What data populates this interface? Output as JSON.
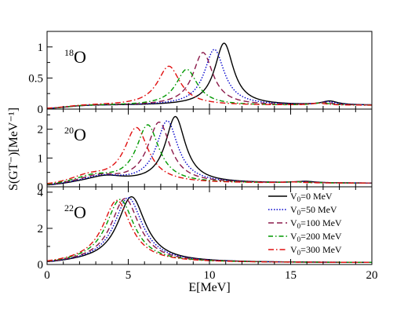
{
  "chart_data": {
    "type": "line",
    "xlabel": "E[MeV]",
    "ylabel": "S(GT⁻)[MeV⁻¹]",
    "xlim": [
      0,
      20
    ],
    "x_ticks": [
      "0",
      "5",
      "10",
      "15",
      "20"
    ],
    "grid": false,
    "legend_position": "bottom-right",
    "legend": [
      {
        "sub": "0",
        "text": "V",
        "val": "=0 MeV",
        "color": "#000000",
        "dash": ""
      },
      {
        "sub": "0",
        "text": "V",
        "val": "=50 MeV",
        "color": "#0000cc",
        "dash": "1.5,2"
      },
      {
        "sub": "0",
        "text": "V",
        "val": "=100 MeV",
        "color": "#8b1a4a",
        "dash": "7,4"
      },
      {
        "sub": "0",
        "text": "V",
        "val": "=200 MeV",
        "color": "#009900",
        "dash": "6,3,1.5,3"
      },
      {
        "sub": "0",
        "text": "V",
        "val": "=300 MeV",
        "color": "#e01010",
        "dash": "7,3,1.5,3"
      }
    ],
    "panels": [
      {
        "nucleus_mass": "18",
        "nucleus_symbol": "O",
        "ylim": [
          0,
          1.25
        ],
        "y_ticks": [
          0,
          0.5,
          1
        ],
        "y_tick_labels": [
          "0",
          "0.5",
          "1"
        ],
        "background": 0.06,
        "series": [
          {
            "name": "V0=0 MeV",
            "peaks": [
              [
                10.9,
                1.0,
                0.7
              ],
              [
                17.4,
                0.06,
                0.6
              ]
            ]
          },
          {
            "name": "V0=50 MeV",
            "peaks": [
              [
                10.3,
                0.9,
                0.75
              ],
              [
                17.3,
                0.05,
                0.6
              ]
            ]
          },
          {
            "name": "V0=100 MeV",
            "peaks": [
              [
                9.6,
                0.85,
                0.75
              ],
              [
                17.1,
                0.04,
                0.6
              ]
            ]
          },
          {
            "name": "V0=200 MeV",
            "peaks": [
              [
                8.6,
                0.58,
                0.8
              ],
              [
                16.9,
                0.035,
                0.6
              ]
            ]
          },
          {
            "name": "V0=300 MeV",
            "peaks": [
              [
                7.5,
                0.63,
                0.85
              ],
              [
                16.7,
                0.03,
                0.6
              ]
            ]
          }
        ]
      },
      {
        "nucleus_mass": "20",
        "nucleus_symbol": "O",
        "ylim": [
          0,
          2.7
        ],
        "y_ticks": [
          0,
          1,
          2
        ],
        "y_tick_labels": [
          "0",
          "1",
          "2"
        ],
        "background": 0.12,
        "series": [
          {
            "name": "V0=0 MeV",
            "peaks": [
              [
                7.9,
                2.3,
                0.75
              ],
              [
                3.6,
                0.22,
                1.4
              ],
              [
                15.9,
                0.05,
                0.7
              ]
            ]
          },
          {
            "name": "V0=50 MeV",
            "peaks": [
              [
                7.4,
                2.15,
                0.8
              ],
              [
                3.4,
                0.22,
                1.4
              ],
              [
                15.7,
                0.04,
                0.7
              ]
            ]
          },
          {
            "name": "V0=100 MeV",
            "peaks": [
              [
                6.9,
                2.1,
                0.85
              ],
              [
                3.2,
                0.22,
                1.4
              ],
              [
                15.5,
                0.04,
                0.7
              ]
            ]
          },
          {
            "name": "V0=200 MeV",
            "peaks": [
              [
                6.2,
                2.0,
                0.85
              ],
              [
                2.9,
                0.22,
                1.4
              ],
              [
                15.3,
                0.035,
                0.7
              ]
            ]
          },
          {
            "name": "V0=300 MeV",
            "peaks": [
              [
                5.5,
                1.9,
                0.9
              ],
              [
                2.6,
                0.22,
                1.4
              ],
              [
                15.1,
                0.03,
                0.7
              ]
            ]
          }
        ]
      },
      {
        "nucleus_mass": "22",
        "nucleus_symbol": "O",
        "ylim": [
          0,
          4.3
        ],
        "y_ticks": [
          0,
          2,
          4
        ],
        "y_tick_labels": [
          "0",
          "2",
          "4"
        ],
        "background": 0.1,
        "series": [
          {
            "name": "V0=0 MeV",
            "peaks": [
              [
                5.2,
                3.65,
                1.05
              ]
            ]
          },
          {
            "name": "V0=50 MeV",
            "peaks": [
              [
                5.0,
                3.6,
                1.05
              ]
            ]
          },
          {
            "name": "V0=100 MeV",
            "peaks": [
              [
                4.8,
                3.55,
                1.05
              ]
            ]
          },
          {
            "name": "V0=200 MeV",
            "peaks": [
              [
                4.5,
                3.5,
                1.05
              ]
            ]
          },
          {
            "name": "V0=300 MeV",
            "peaks": [
              [
                4.3,
                3.45,
                1.05
              ]
            ]
          }
        ]
      }
    ]
  }
}
